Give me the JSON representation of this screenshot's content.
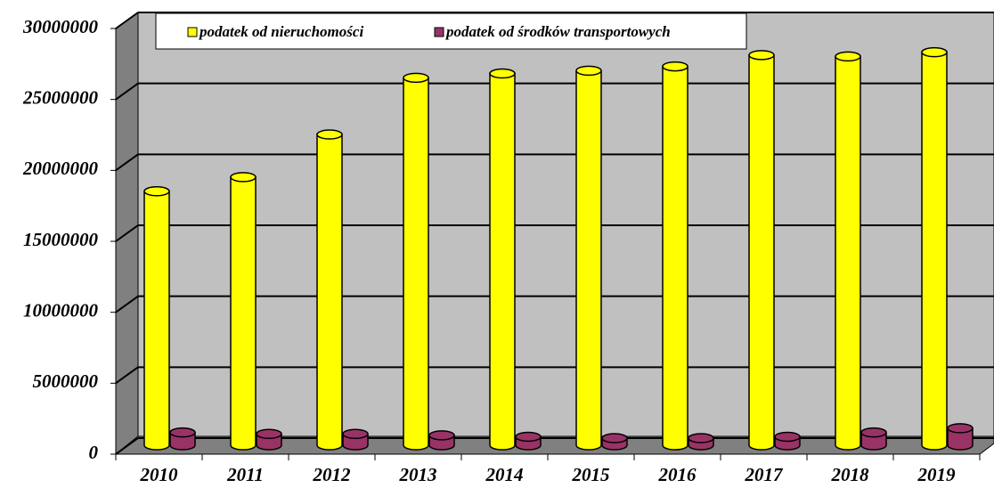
{
  "chart_data": {
    "type": "bar3d",
    "categories": [
      "2010",
      "2011",
      "2012",
      "2013",
      "2014",
      "2015",
      "2016",
      "2017",
      "2018",
      "2019"
    ],
    "series": [
      {
        "name": "podatek od nieruchomości",
        "color": "#ffff00",
        "values": [
          17900000,
          18900000,
          21900000,
          25900000,
          26200000,
          26400000,
          26700000,
          27500000,
          27400000,
          27700000
        ]
      },
      {
        "name": "podatek od środków transportowych",
        "color": "#993366",
        "values": [
          900000,
          800000,
          800000,
          700000,
          600000,
          500000,
          500000,
          600000,
          900000,
          1200000
        ]
      }
    ],
    "ylim": [
      0,
      30000000
    ],
    "yticks": [
      0,
      5000000,
      10000000,
      15000000,
      20000000,
      25000000,
      30000000
    ],
    "grid": true
  }
}
